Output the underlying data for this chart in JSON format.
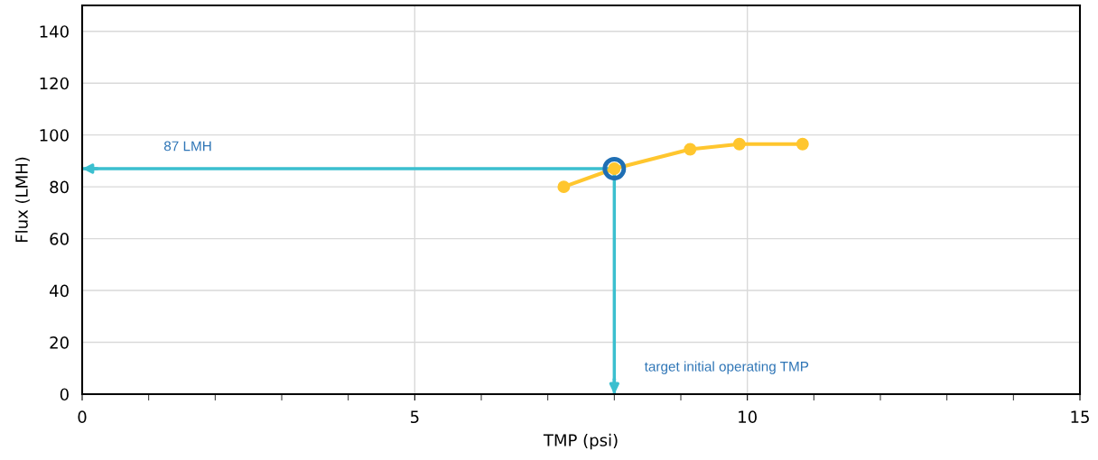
{
  "chart_data": {
    "type": "line",
    "xlabel": "TMP (psi)",
    "ylabel": "Flux (LMH)",
    "xlim": [
      0,
      15
    ],
    "ylim": [
      0,
      150
    ],
    "xticks": [
      0,
      {
        "value": 1,
        "label": null
      },
      {
        "value": 2,
        "label": null
      },
      {
        "value": 3,
        "label": null
      },
      {
        "value": 4,
        "label": null
      },
      5,
      {
        "value": 6,
        "label": null
      },
      {
        "value": 7,
        "label": null
      },
      {
        "value": 8,
        "label": null
      },
      {
        "value": 9,
        "label": null
      },
      10,
      {
        "value": 11,
        "label": null
      },
      {
        "value": 12,
        "label": null
      },
      {
        "value": 13,
        "label": null
      },
      {
        "value": 14,
        "label": null
      },
      15
    ],
    "yticks": [
      0,
      20,
      40,
      60,
      80,
      100,
      120,
      140
    ],
    "grid": true,
    "legend": false,
    "marker": "circle",
    "line_style": "solid",
    "series": [
      {
        "color": "#ffc62e",
        "x": [
          7.24,
          8.0,
          9.14,
          9.88,
          10.83
        ],
        "values": [
          80,
          87,
          94.5,
          96.5,
          96.5
        ]
      },
      {
        "type": "scatter",
        "color": "#1f6fb4",
        "x": [
          8.0
        ],
        "values": [
          87
        ]
      }
    ],
    "ref_lines": [
      {
        "axis": "y",
        "value": 87,
        "label": "87 LMH",
        "color": "#3bbfcf"
      },
      {
        "axis": "x",
        "value": 8,
        "label": "target initial operating TMP",
        "color": "#3bbfcf"
      }
    ]
  }
}
